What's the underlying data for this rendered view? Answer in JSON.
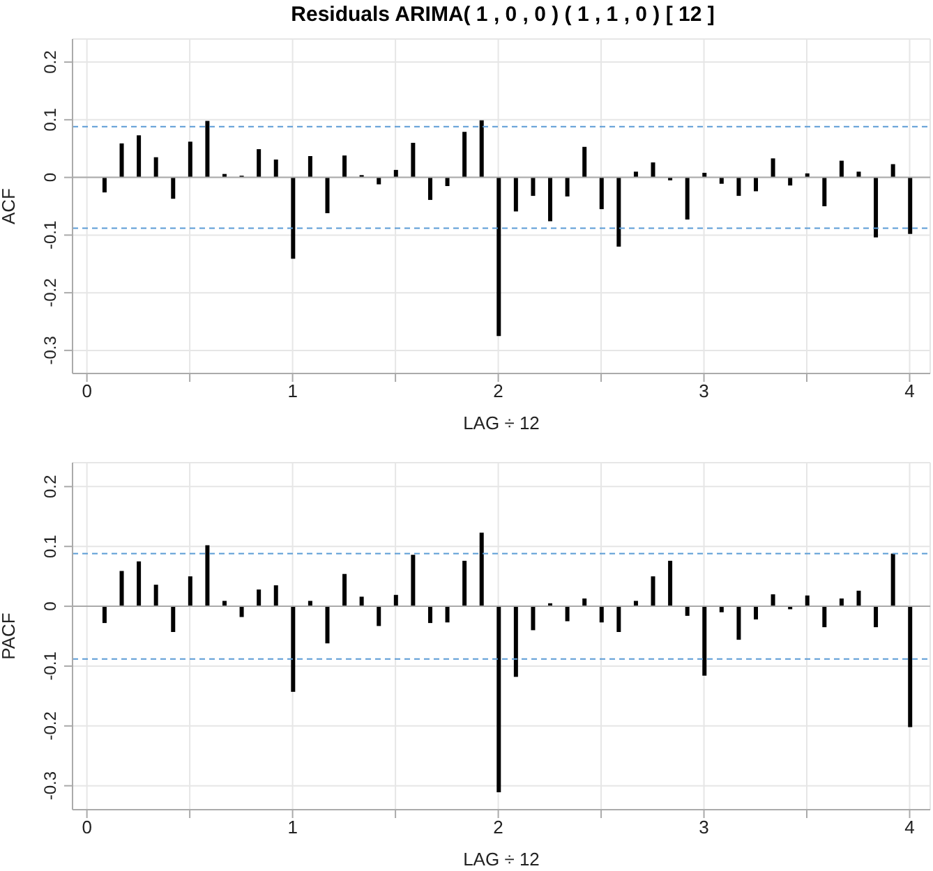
{
  "chart_data": [
    {
      "type": "bar",
      "title": "Residuals ARIMA( 1 , 0 , 0 ) ( 1 , 1 , 0 ) [ 12 ]",
      "xlabel": "LAG ÷ 12",
      "ylabel": "ACF",
      "x": [
        0.0833,
        0.1667,
        0.25,
        0.3333,
        0.4167,
        0.5,
        0.5833,
        0.6667,
        0.75,
        0.8333,
        0.9167,
        1,
        1.0833,
        1.1667,
        1.25,
        1.3333,
        1.4167,
        1.5,
        1.5833,
        1.6667,
        1.75,
        1.8333,
        1.9167,
        2,
        2.0833,
        2.1667,
        2.25,
        2.3333,
        2.4167,
        2.5,
        2.5833,
        2.6667,
        2.75,
        2.8333,
        2.9167,
        3,
        3.0833,
        3.1667,
        3.25,
        3.3333,
        3.4167,
        3.5,
        3.5833,
        3.6667,
        3.75,
        3.8333,
        3.9167,
        4
      ],
      "values": [
        -0.026,
        0.059,
        0.073,
        0.035,
        -0.037,
        0.062,
        0.098,
        0.006,
        0.003,
        0.049,
        0.031,
        -0.141,
        0.037,
        -0.062,
        0.038,
        0.004,
        -0.012,
        0.013,
        0.06,
        -0.039,
        -0.015,
        0.079,
        0.099,
        -0.275,
        -0.059,
        -0.032,
        -0.076,
        -0.033,
        0.053,
        -0.055,
        -0.12,
        0.01,
        0.026,
        -0.005,
        -0.073,
        0.008,
        -0.011,
        -0.032,
        -0.024,
        0.033,
        -0.014,
        0.007,
        -0.05,
        0.029,
        0.01,
        -0.104,
        0.023,
        -0.098
      ],
      "color": "#000000",
      "xlim": [
        -0.07,
        4.1
      ],
      "ylim": [
        -0.34,
        0.24
      ],
      "xticks": [
        0,
        {
          "value": 0.5,
          "label": null
        },
        1,
        {
          "value": 1.5,
          "label": null
        },
        2,
        {
          "value": 2.5,
          "label": null
        },
        3,
        {
          "value": 3.5,
          "label": null
        },
        4
      ],
      "yticks": [
        -0.3,
        -0.2,
        -0.1,
        0,
        0.1,
        0.2
      ],
      "grid": true,
      "ref_lines": [
        {
          "axis": "y",
          "value": 0,
          "color": "#aaaaaa",
          "line_style": "solid"
        },
        {
          "axis": "y",
          "value": 0.088,
          "color": "#5b9bd5",
          "line_style": "dashed"
        },
        {
          "axis": "y",
          "value": -0.088,
          "color": "#5b9bd5",
          "line_style": "dashed"
        }
      ]
    },
    {
      "type": "bar",
      "xlabel": "LAG ÷ 12",
      "ylabel": "PACF",
      "x": [
        0.0833,
        0.1667,
        0.25,
        0.3333,
        0.4167,
        0.5,
        0.5833,
        0.6667,
        0.75,
        0.8333,
        0.9167,
        1,
        1.0833,
        1.1667,
        1.25,
        1.3333,
        1.4167,
        1.5,
        1.5833,
        1.6667,
        1.75,
        1.8333,
        1.9167,
        2,
        2.0833,
        2.1667,
        2.25,
        2.3333,
        2.4167,
        2.5,
        2.5833,
        2.6667,
        2.75,
        2.8333,
        2.9167,
        3,
        3.0833,
        3.1667,
        3.25,
        3.3333,
        3.4167,
        3.5,
        3.5833,
        3.6667,
        3.75,
        3.8333,
        3.9167,
        4
      ],
      "values": [
        -0.028,
        0.059,
        0.075,
        0.036,
        -0.043,
        0.05,
        0.102,
        0.009,
        -0.018,
        0.028,
        0.035,
        -0.143,
        0.009,
        -0.062,
        0.054,
        0.016,
        -0.033,
        0.019,
        0.086,
        -0.028,
        -0.027,
        0.076,
        0.123,
        -0.311,
        -0.118,
        -0.04,
        0.005,
        -0.025,
        0.013,
        -0.027,
        -0.043,
        0.009,
        0.05,
        0.076,
        -0.016,
        -0.116,
        -0.01,
        -0.056,
        -0.022,
        0.02,
        -0.005,
        0.018,
        -0.035,
        0.013,
        0.026,
        -0.035,
        0.088,
        -0.202
      ],
      "color": "#000000",
      "xlim": [
        -0.07,
        4.1
      ],
      "ylim": [
        -0.34,
        0.24
      ],
      "xticks": [
        0,
        {
          "value": 0.5,
          "label": null
        },
        1,
        {
          "value": 1.5,
          "label": null
        },
        2,
        {
          "value": 2.5,
          "label": null
        },
        3,
        {
          "value": 3.5,
          "label": null
        },
        4
      ],
      "yticks": [
        -0.3,
        -0.2,
        -0.1,
        0,
        0.1,
        0.2
      ],
      "grid": true,
      "ref_lines": [
        {
          "axis": "y",
          "value": 0,
          "color": "#aaaaaa",
          "line_style": "solid"
        },
        {
          "axis": "y",
          "value": 0.088,
          "color": "#5b9bd5",
          "line_style": "dashed"
        },
        {
          "axis": "y",
          "value": -0.088,
          "color": "#5b9bd5",
          "line_style": "dashed"
        }
      ]
    }
  ]
}
